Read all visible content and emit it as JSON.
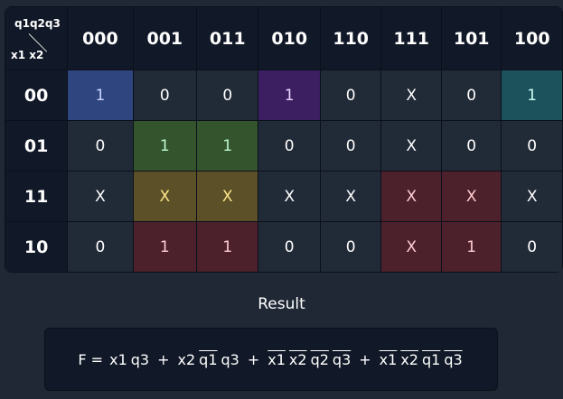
{
  "corner": {
    "top": "q1q2q3",
    "bottom": "x1 x2"
  },
  "columns": [
    "000",
    "001",
    "011",
    "010",
    "110",
    "111",
    "101",
    "100"
  ],
  "rows": [
    {
      "label": "00",
      "cells": [
        "1",
        "0",
        "0",
        "1",
        "0",
        "X",
        "0",
        "1"
      ],
      "groups": [
        "blue",
        "",
        "",
        "purple",
        "",
        "",
        "",
        "teal"
      ]
    },
    {
      "label": "01",
      "cells": [
        "0",
        "1",
        "1",
        "0",
        "0",
        "X",
        "0",
        "0"
      ],
      "groups": [
        "",
        "green",
        "green",
        "",
        "",
        "",
        "",
        ""
      ]
    },
    {
      "label": "11",
      "cells": [
        "X",
        "X",
        "X",
        "X",
        "X",
        "X",
        "X",
        "X"
      ],
      "groups": [
        "",
        "yellow",
        "yellow",
        "",
        "",
        "red",
        "red",
        ""
      ]
    },
    {
      "label": "10",
      "cells": [
        "0",
        "1",
        "1",
        "0",
        "0",
        "X",
        "1",
        "0"
      ],
      "groups": [
        "",
        "red",
        "red",
        "",
        "",
        "red",
        "red",
        ""
      ]
    }
  ],
  "group_colors": {
    "blue": {
      "bg": "#2e4580",
      "fg": "#c7d2fe"
    },
    "purple": {
      "bg": "#3b1f61",
      "fg": "#e9d5ff"
    },
    "teal": {
      "bg": "#1b525c",
      "fg": "#ccfbf1"
    },
    "green": {
      "bg": "#34542d",
      "fg": "#bbf7d0"
    },
    "yellow": {
      "bg": "#5b5027",
      "fg": "#fde68a"
    },
    "red": {
      "bg": "#4d212c",
      "fg": "#fecdd3"
    }
  },
  "result": {
    "title": "Result",
    "prefix": "F = ",
    "tokens": [
      {
        "t": "x1",
        "o": false
      },
      {
        "t": "q3",
        "o": false
      },
      {
        "t": "+",
        "o": false
      },
      {
        "t": "x2",
        "o": false
      },
      {
        "t": "q1",
        "o": true
      },
      {
        "t": "q3",
        "o": false
      },
      {
        "t": "+",
        "o": false
      },
      {
        "t": "x1",
        "o": true
      },
      {
        "t": "x2",
        "o": true
      },
      {
        "t": "q2",
        "o": true
      },
      {
        "t": "q3",
        "o": true
      },
      {
        "t": "+",
        "o": false
      },
      {
        "t": "x1",
        "o": true
      },
      {
        "t": "x2",
        "o": true
      },
      {
        "t": "q1",
        "o": true
      },
      {
        "t": "q3",
        "o": true
      }
    ]
  }
}
